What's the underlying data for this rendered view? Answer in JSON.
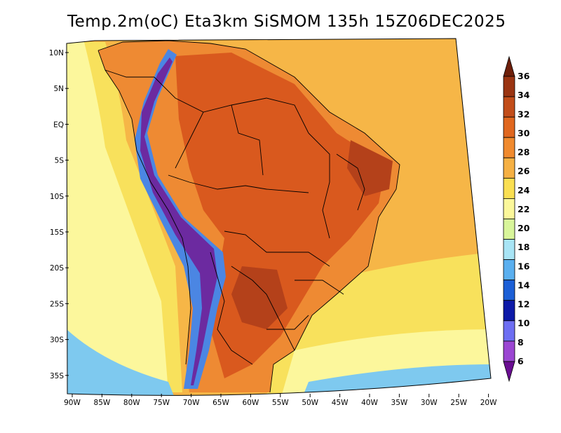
{
  "title": "Temp.2m(oC) Eta3km SiSMOM 135h 15Z06DEC2025",
  "lat_labels": [
    "10N",
    "5N",
    "EQ",
    "5S",
    "10S",
    "15S",
    "20S",
    "25S",
    "30S",
    "35S"
  ],
  "lon_labels": [
    "90W",
    "85W",
    "80W",
    "75W",
    "70W",
    "65W",
    "60W",
    "55W",
    "50W",
    "45W",
    "40W",
    "35W",
    "30W",
    "25W",
    "20W"
  ],
  "colorbar": {
    "labels": [
      "36",
      "34",
      "32",
      "30",
      "28",
      "26",
      "24",
      "22",
      "20",
      "18",
      "16",
      "14",
      "12",
      "10",
      "8",
      "6"
    ],
    "colors": [
      "#6e1f0a",
      "#9a3412",
      "#c24d1a",
      "#e0671f",
      "#f08a2e",
      "#f5b043",
      "#fadf52",
      "#fbf79a",
      "#d8f59a",
      "#a8e4f5",
      "#5aafef",
      "#1c5fd6",
      "#0d1aa8",
      "#6d6ef2",
      "#9b46d2",
      "#6a0d92"
    ],
    "units": "oC"
  },
  "map_colors": {
    "ocean_warm": "#f6b647",
    "ocean_mid": "#f8e15c",
    "ocean_cool": "#fcf79c",
    "land_base": "#ee8a33",
    "land_hot": "#d9591e",
    "land_very_hot": "#b4411a",
    "andes_cold": "#6c2aa0",
    "andes_cool": "#4b86e3",
    "south_cold": "#7ec9ef"
  }
}
